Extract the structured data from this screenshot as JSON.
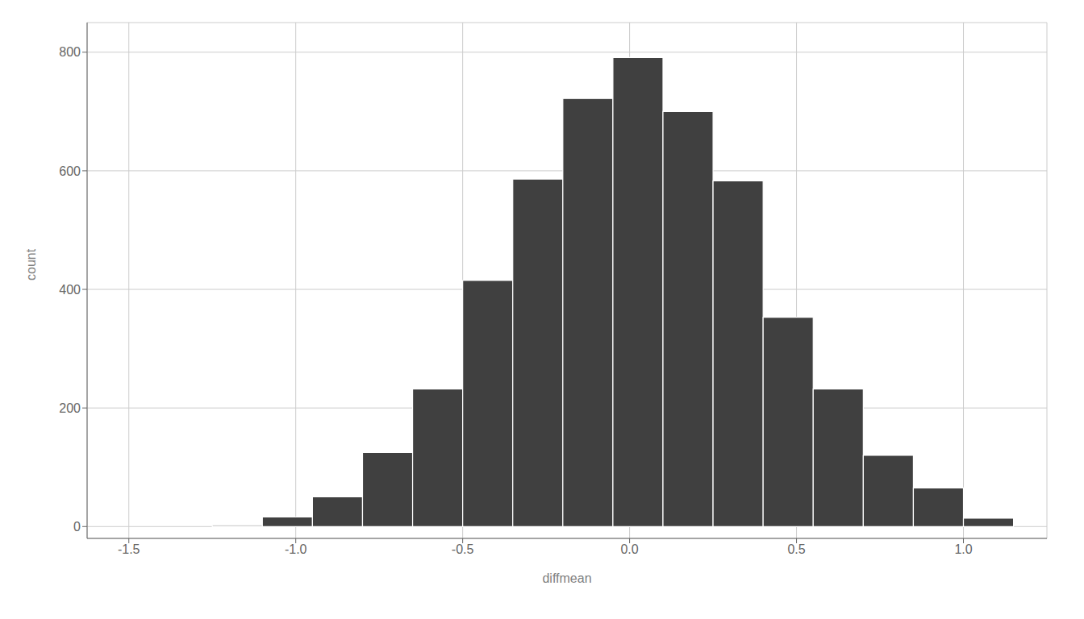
{
  "chart_data": {
    "type": "histogram",
    "xlabel": "diffmean",
    "ylabel": "count",
    "bins": [
      -1.25,
      -1.1,
      -0.95,
      -0.8,
      -0.65,
      -0.5,
      -0.35,
      -0.2,
      -0.05,
      0.1,
      0.25,
      0.4,
      0.55,
      0.7,
      0.85,
      1.0,
      1.15
    ],
    "values": [
      2,
      16,
      50,
      125,
      232,
      415,
      586,
      722,
      791,
      700,
      583,
      353,
      232,
      120,
      65,
      14
    ],
    "color": "#404040",
    "xlim": [
      -1.625,
      1.25
    ],
    "ylim": [
      -20,
      850
    ],
    "xticks": [
      -1.5,
      {
        "value": -1.0,
        "label": "-1.0"
      },
      -0.5,
      {
        "value": 0.0,
        "label": "0.0"
      },
      0.5,
      {
        "value": 1.0,
        "label": "1.0"
      }
    ],
    "yticks": [
      0,
      200,
      400,
      600,
      800
    ],
    "grid": true
  }
}
